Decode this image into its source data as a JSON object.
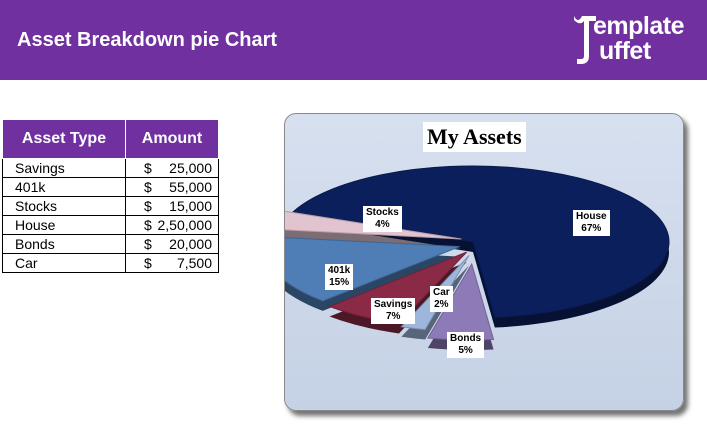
{
  "header": {
    "title": "Asset Breakdown pie Chart",
    "logo_line1": "emplate",
    "logo_line2": "uffet",
    "color": "#7030a0"
  },
  "table": {
    "headers": [
      "Asset Type",
      "Amount"
    ],
    "rows": [
      {
        "type": "Savings",
        "currency": "$",
        "amount": "25,000"
      },
      {
        "type": "401k",
        "currency": "$",
        "amount": "55,000"
      },
      {
        "type": "Stocks",
        "currency": "$",
        "amount": "15,000"
      },
      {
        "type": "House",
        "currency": "$",
        "amount": "2,50,000"
      },
      {
        "type": "Bonds",
        "currency": "$",
        "amount": "20,000"
      },
      {
        "type": "Car",
        "currency": "$",
        "amount": "7,500"
      }
    ]
  },
  "chart_data": {
    "type": "pie",
    "title": "My Assets",
    "slices": [
      {
        "label": "House",
        "percent_label": "67%",
        "value": 250000,
        "color": "#0b1f5c"
      },
      {
        "label": "Bonds",
        "percent_label": "5%",
        "value": 20000,
        "color": "#8d7bb8"
      },
      {
        "label": "Car",
        "percent_label": "2%",
        "value": 7500,
        "color": "#9fb6dc"
      },
      {
        "label": "Savings",
        "percent_label": "7%",
        "value": 25000,
        "color": "#8b2a46"
      },
      {
        "label": "401k",
        "percent_label": "15%",
        "value": 55000,
        "color": "#4f7db5"
      },
      {
        "label": "Stocks",
        "percent_label": "4%",
        "value": 15000,
        "color": "#e2c4d1"
      }
    ]
  }
}
